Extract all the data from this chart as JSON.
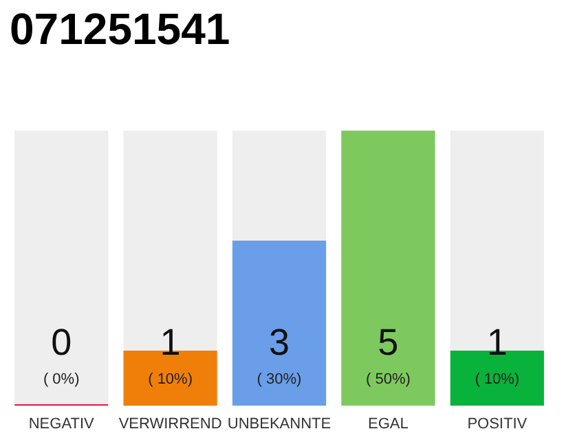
{
  "chart_data": {
    "type": "bar",
    "title": "071251541",
    "categories": [
      "NEGATIV",
      "VERWIRREND",
      "UNBEKANNTE",
      "EGAL",
      "POSITIV"
    ],
    "values": [
      0,
      1,
      3,
      5,
      1
    ],
    "colors": [
      "#e8173d",
      "#f07f09",
      "#6a9ee8",
      "#7dc95e",
      "#09b33b"
    ],
    "value_labels": [
      "0\n( 0%)",
      "1\n( 10%)",
      "3\n( 30%)",
      "5\n( 50%)",
      "1\n( 10%)"
    ],
    "tick_labels": "x"
  }
}
